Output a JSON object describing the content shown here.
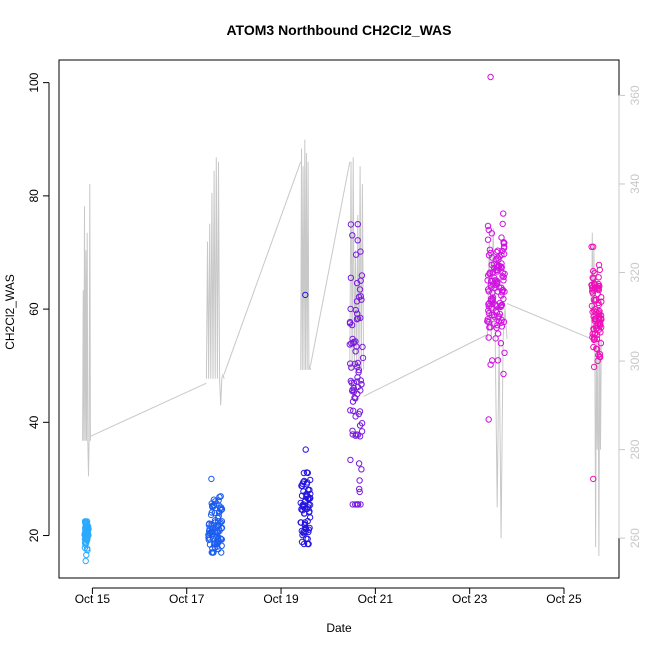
{
  "chart_data": {
    "type": "scatter",
    "title": "ATOM3 Northbound CH2Cl2_WAS",
    "xlabel": "Date",
    "ylabel": "CH2Cl2_WAS",
    "x_is_date": true,
    "xlim": [
      "2016-10-14T07:00",
      "2016-10-26T04:00"
    ],
    "ylim": [
      12.5,
      104
    ],
    "y_ticks": [
      20,
      40,
      60,
      80,
      100
    ],
    "x_ticks": [
      {
        "date": "2016-10-15T00:00",
        "label": "Oct 15"
      },
      {
        "date": "2016-10-17T00:00",
        "label": "Oct 17"
      },
      {
        "date": "2016-10-19T00:00",
        "label": "Oct 19"
      },
      {
        "date": "2016-10-21T00:00",
        "label": "Oct 21"
      },
      {
        "date": "2016-10-23T00:00",
        "label": "Oct 23"
      },
      {
        "date": "2016-10-25T00:00",
        "label": "Oct 25"
      }
    ],
    "secondary_axis": {
      "ylim": [
        251,
        368
      ],
      "ticks": [
        260,
        280,
        300,
        320,
        340,
        360
      ],
      "color": "#c8c8c8"
    },
    "grid": false,
    "legend": "none",
    "point_style": "open-circle",
    "color_gradient": [
      "#00b4ff",
      "#0000ff",
      "#ff00cc"
    ],
    "series": [
      {
        "flight": 1,
        "color": "#2aaaff",
        "x_range": [
          "2016-10-14T20:00",
          "2016-10-14T22:00"
        ],
        "y_center": 20.5,
        "y_spread": 1.5,
        "y_min": 15.5,
        "y_max": 22.5,
        "n_points": 60
      },
      {
        "flight": 2,
        "color": "#1c5cf0",
        "x_range": [
          "2016-10-17T11:00",
          "2016-10-17T18:00"
        ],
        "y_center": 21.5,
        "y_spread": 2.5,
        "y_min": 17,
        "y_max": 30,
        "n_points": 85
      },
      {
        "flight": 3,
        "color": "#2414e0",
        "x_range": [
          "2016-10-19T10:00",
          "2016-10-19T15:00"
        ],
        "y_center": 25,
        "y_spread": 4,
        "y_min": 18.5,
        "y_max": 62.5,
        "n_points": 70
      },
      {
        "flight": 4,
        "color": "#7a1ae0",
        "x_range": [
          "2016-10-20T11:00",
          "2016-10-20T18:00"
        ],
        "y_center": 48,
        "y_spread": 12,
        "y_min": 25.5,
        "y_max": 75,
        "n_points": 85
      },
      {
        "flight": 5,
        "color": "#d014e0",
        "x_range": [
          "2016-10-23T09:00",
          "2016-10-23T18:00"
        ],
        "y_center": 63,
        "y_spread": 5,
        "y_min": 40.5,
        "y_max": 101,
        "n_points": 130
      },
      {
        "flight": 6,
        "color": "#ee10b8",
        "x_range": [
          "2016-10-25T14:00",
          "2016-10-25T19:00"
        ],
        "y_center": 59,
        "y_spread": 4.5,
        "y_min": 30,
        "y_max": 71,
        "n_points": 90
      }
    ],
    "secondary_line": {
      "color": "#c8c8c8",
      "description_units": "right axis",
      "segments": [
        {
          "x_range": [
            "2016-10-14T19:00",
            "2016-10-14T23:00"
          ],
          "base": 282,
          "peaks": [
            316,
            335,
            325,
            329,
            274,
            340
          ]
        },
        {
          "x_range": [
            "2016-10-17T10:00",
            "2016-10-17T19:00"
          ],
          "base": 296,
          "peaks": [
            327,
            331,
            338,
            343,
            346,
            345,
            290,
            297
          ]
        },
        {
          "x_range": [
            "2016-10-19T10:00",
            "2016-10-19T15:00"
          ],
          "base": 298,
          "peaks": [
            348,
            344,
            350,
            347,
            345,
            299
          ]
        },
        {
          "x_range": [
            "2016-10-20T11:00",
            "2016-10-20T18:00"
          ],
          "base": 298,
          "peaks": [
            345,
            346,
            325,
            333,
            344,
            340
          ]
        },
        {
          "x_range": [
            "2016-10-23T09:00",
            "2016-10-23T19:00"
          ],
          "base": 305,
          "peaks": [
            327,
            330,
            267,
            260,
            312
          ]
        },
        {
          "x_range": [
            "2016-10-25T14:00",
            "2016-10-25T19:00"
          ],
          "base": 305,
          "peaks": [
            329,
            326,
            258,
            280,
            256,
            280
          ]
        }
      ],
      "connectors": [
        {
          "from": [
            "2016-10-14T23:00",
            283
          ],
          "to": [
            "2016-10-17T10:00",
            295
          ]
        },
        {
          "from": [
            "2016-10-17T19:00",
            297
          ],
          "to": [
            "2016-10-19T10:00",
            345
          ]
        },
        {
          "from": [
            "2016-10-19T15:00",
            299
          ],
          "to": [
            "2016-10-20T11:00",
            345
          ]
        },
        {
          "from": [
            "2016-10-20T18:00",
            292
          ],
          "to": [
            "2016-10-23T09:00",
            306
          ]
        },
        {
          "from": [
            "2016-10-23T19:00",
            313
          ],
          "to": [
            "2016-10-25T14:00",
            305
          ]
        }
      ]
    }
  }
}
